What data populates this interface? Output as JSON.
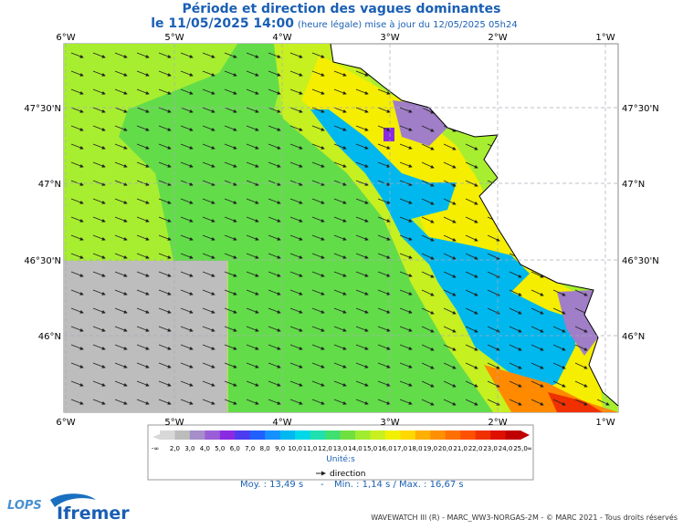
{
  "header": {
    "title": "Période et direction des vagues dominantes",
    "date": "le 11/05/2025 14:00",
    "note": "(heure légale) mise à jour du 12/05/2025 05h24"
  },
  "map": {
    "lon_labels": [
      "6°W",
      "5°W",
      "4°W",
      "3°W",
      "2°W",
      "1°W"
    ],
    "lat_labels": [
      "47°30'N",
      "47°N",
      "46°30'N",
      "46°N"
    ]
  },
  "colorbar": {
    "labels": [
      "-∞",
      "2,0",
      "3,0",
      "4,0",
      "5,0",
      "6,0",
      "7,0",
      "8,0",
      "9,0",
      "10,0",
      "11,0",
      "12,0",
      "13,0",
      "14,0",
      "15,0",
      "16,0",
      "17,0",
      "18,0",
      "19,0",
      "20,0",
      "21,0",
      "22,0",
      "23,0",
      "24,0",
      "25,0",
      "∞"
    ],
    "colors": [
      "#d8d8d8",
      "#bcbcbc",
      "#a58ec9",
      "#9a5fd8",
      "#8a2be2",
      "#4b3cf0",
      "#2060ff",
      "#1590ff",
      "#00b8f0",
      "#00d8e8",
      "#20e0b0",
      "#40e070",
      "#70e040",
      "#a0ec30",
      "#c8f020",
      "#f0f000",
      "#ffd800",
      "#ffb000",
      "#ff9000",
      "#ff7000",
      "#ff5000",
      "#f03000",
      "#e01000",
      "#c00000"
    ],
    "unit": "Unité:s"
  },
  "legend": {
    "direction": "direction"
  },
  "stats": {
    "mean": "Moy. : 13,49 s",
    "minmax": "Min. : 1,14 s / Max. : 16,67 s"
  },
  "footer": {
    "credit": "WAVEWATCH III (R) - MARC_WW3-NORGAS-2M - © MARC 2021 - Tous droits réservés",
    "logo1": "LOPS",
    "logo2": "Ifremer"
  }
}
